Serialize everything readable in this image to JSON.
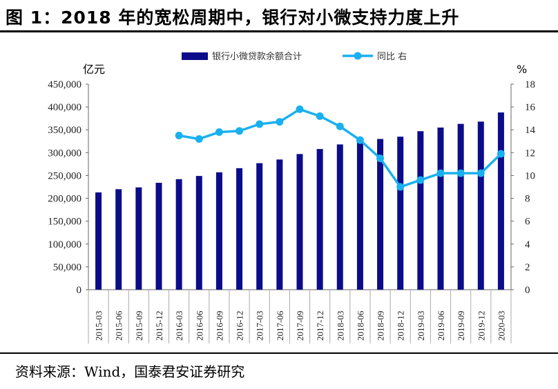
{
  "header": {
    "title": "图 1：2018 年的宽松周期中，银行对小微支持力度上升"
  },
  "footer": {
    "source": "资料来源：Wind，国泰君安证券研究"
  },
  "colors": {
    "bar": "#0c0c8a",
    "line": "#1ab0f0"
  },
  "chart_data": {
    "type": "bar",
    "title": "",
    "categories": [
      "2015-03",
      "2015-06",
      "2015-09",
      "2015-12",
      "2016-03",
      "2016-06",
      "2016-09",
      "2016-12",
      "2017-03",
      "2017-06",
      "2017-09",
      "2017-12",
      "2018-03",
      "2018-06",
      "2018-09",
      "2018-12",
      "2019-03",
      "2019-06",
      "2019-09",
      "2019-12",
      "2020-03"
    ],
    "series": [
      {
        "name": "银行小微贷款余额合计",
        "type": "bar",
        "axis": "left",
        "values": [
          213000,
          220000,
          224000,
          234000,
          242000,
          249000,
          257000,
          266000,
          277000,
          285000,
          297000,
          308000,
          318000,
          327000,
          330000,
          335000,
          347000,
          355000,
          363000,
          368000,
          388000
        ]
      },
      {
        "name": "同比 右",
        "type": "line",
        "axis": "right",
        "values": [
          null,
          null,
          null,
          null,
          13.5,
          13.2,
          13.8,
          13.9,
          14.5,
          14.7,
          15.8,
          15.2,
          14.3,
          13.1,
          11.5,
          9.0,
          9.6,
          10.2,
          10.2,
          10.2,
          11.9
        ]
      }
    ],
    "left_axis": {
      "label": "亿元",
      "ylim": [
        0,
        450000
      ],
      "ticks": [
        "0",
        "50,000",
        "100,000",
        "150,000",
        "200,000",
        "250,000",
        "300,000",
        "350,000",
        "400,000",
        "450,000"
      ]
    },
    "right_axis": {
      "label": "%",
      "ylim": [
        0,
        18
      ],
      "ticks": [
        "0",
        "2",
        "4",
        "6",
        "8",
        "10",
        "12",
        "14",
        "16",
        "18"
      ]
    },
    "legend": {
      "position": "top"
    },
    "grid": false
  }
}
